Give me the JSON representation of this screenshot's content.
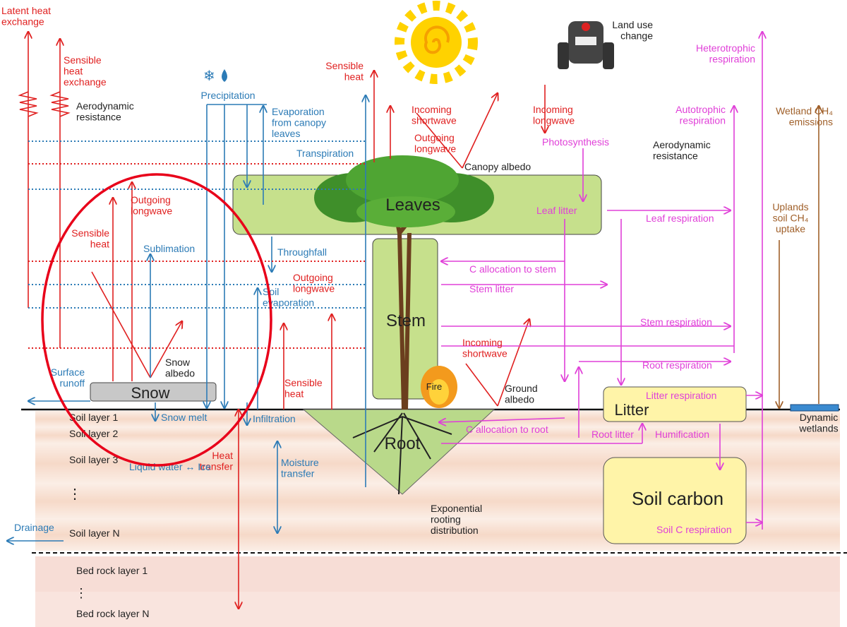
{
  "energy": {
    "latent": [
      "Latent heat",
      "exchange"
    ],
    "sensible_exchange": [
      "Sensible",
      "heat",
      "exchange"
    ],
    "aero_left": [
      "Aerodynamic",
      "resistance"
    ],
    "sensible_top": [
      "Sensible",
      "heat"
    ],
    "in_sw_top": [
      "Incoming",
      "shortwave"
    ],
    "out_lw_top": [
      "Outgoing",
      "longwave"
    ],
    "in_lw_top": [
      "Incoming",
      "longwave"
    ],
    "out_lw_snow": [
      "Outgoing",
      "longwave"
    ],
    "sensible_snow": [
      "Sensible",
      "heat"
    ],
    "out_lw_soil": [
      "Outgoing",
      "longwave"
    ],
    "sensible_ground": [
      "Sensible",
      "heat"
    ],
    "in_sw_ground": [
      "Incoming",
      "shortwave"
    ],
    "heat_transfer": [
      "Heat",
      "transfer"
    ],
    "aero_right": [
      "Aerodynamic",
      "resistance"
    ],
    "canopy_albedo": "Canopy albedo",
    "snow_albedo": [
      "Snow",
      "albedo"
    ],
    "ground_albedo": [
      "Ground",
      "albedo"
    ]
  },
  "water": {
    "precipitation": "Precipitation",
    "evaporation": [
      "Evaporation",
      "from canopy",
      "leaves"
    ],
    "transpiration": "Transpiration",
    "sublimation": "Sublimation",
    "throughfall": "Throughfall",
    "soil_evaporation": [
      "Soil",
      "evaporation"
    ],
    "surface_runoff": [
      "Surface",
      "runoff"
    ],
    "snow_melt": "Snow melt",
    "infiltration": "Infiltration",
    "liquid_ice": "Liquid water ↔ Ice",
    "moisture": [
      "Moisture",
      "transfer"
    ],
    "drainage": "Drainage"
  },
  "carbon": {
    "heterotrophic": [
      "Heterotrophic",
      "respiration"
    ],
    "autotrophic": [
      "Autotrophic",
      "respiration"
    ],
    "photosynthesis": "Photosynthesis",
    "leaf_litter": "Leaf litter",
    "leaf_respiration": "Leaf respiration",
    "c_alloc_stem": "C allocation to stem",
    "stem_litter": "Stem litter",
    "stem_respiration": "Stem respiration",
    "root_respiration": "Root respiration",
    "litter_respiration": "Litter respiration",
    "c_alloc_root": "C allocation to root",
    "root_litter": "Root litter",
    "humification": "Humification",
    "soil_c_respiration": "Soil C respiration"
  },
  "methane": {
    "wetland_emissions": [
      "Wetland CH₄",
      "emissions"
    ],
    "uplands_uptake": [
      "Uplands",
      "soil CH₄",
      "uptake"
    ]
  },
  "land_use": [
    "Land use",
    "change"
  ],
  "pools": {
    "leaves": "Leaves",
    "stem": "Stem",
    "root": "Root",
    "snow": "Snow",
    "litter": "Litter",
    "soil_carbon": "Soil carbon",
    "fire": "Fire"
  },
  "soil": {
    "layer1": "Soil layer 1",
    "layer2": "Soil layer 2",
    "layer3": "Soil layer 3",
    "dots": "⋮",
    "layerN": "Soil layer N",
    "bed1": "Bed rock layer 1",
    "bed_dots": "⋮",
    "bedN": "Bed rock layer N"
  },
  "root_distribution": [
    "Exponential",
    "rooting",
    "distribution"
  ],
  "wetlands": [
    "Dynamic",
    "wetlands"
  ]
}
